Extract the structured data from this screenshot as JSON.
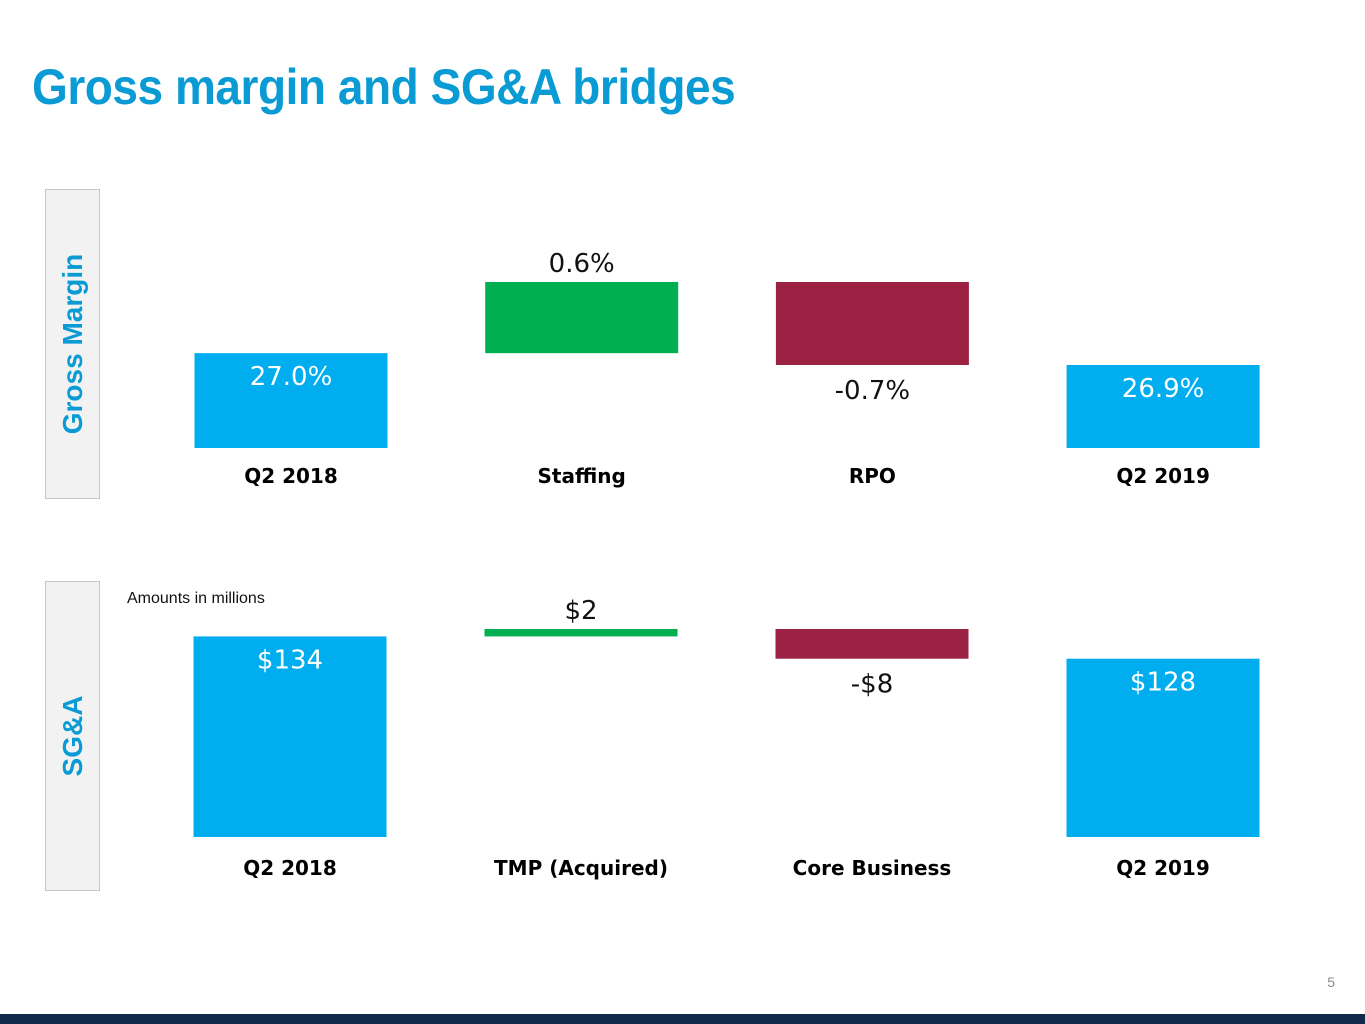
{
  "title": "Gross margin and SG&A bridges",
  "page_number": "5",
  "colors": {
    "base": "#00adef",
    "increase": "#00b050",
    "decrease": "#9b2242",
    "accent": "#0a9bd5",
    "footer": "#13294b"
  },
  "chart_data": [
    {
      "type": "bar",
      "subtype": "waterfall",
      "side_label": "Gross Margin",
      "note": "",
      "categories": [
        "Q2 2018",
        "Staffing",
        "RPO",
        "Q2 2019"
      ],
      "values": [
        27.0,
        0.6,
        -0.7,
        26.9
      ],
      "labels": [
        "27.0%",
        "0.6%",
        "-0.7%",
        "26.9%"
      ],
      "kinds": [
        "total",
        "delta",
        "delta",
        "total"
      ]
    },
    {
      "type": "bar",
      "subtype": "waterfall",
      "side_label": "SG&A",
      "note": "Amounts in millions",
      "categories": [
        "Q2 2018",
        "TMP (Acquired)",
        "Core Business",
        "Q2 2019"
      ],
      "values": [
        134,
        2,
        -8,
        128
      ],
      "labels": [
        "$134",
        "$2",
        "-$8",
        "$128"
      ],
      "kinds": [
        "total",
        "delta",
        "delta",
        "total"
      ]
    }
  ]
}
